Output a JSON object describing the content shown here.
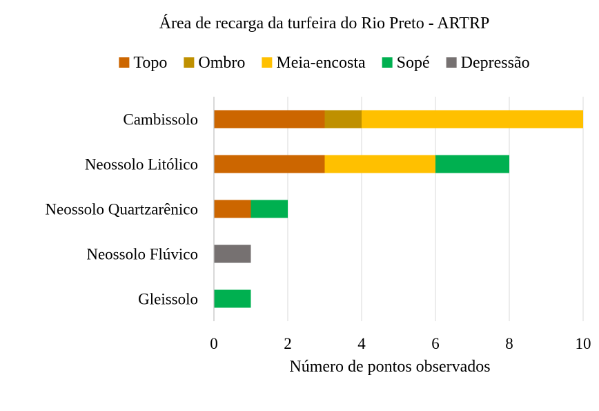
{
  "chart_data": {
    "type": "bar",
    "orientation": "horizontal",
    "stacked": true,
    "title": "Área de recarga da turfeira do Rio Preto - ARTRP",
    "xlabel": "Número de pontos observados",
    "ylabel": "",
    "xlim": [
      0,
      10
    ],
    "x_ticks": [
      "0",
      "2",
      "4",
      "6",
      "8",
      "10"
    ],
    "grid": "vertical",
    "legend_position": "top",
    "categories": [
      "Cambissolo",
      "Neossolo Litólico",
      "Neossolo Quartzarênico",
      "Neossolo Flúvico",
      "Gleissolo"
    ],
    "series": [
      {
        "name": "Topo",
        "color": "#CC6600",
        "values": [
          3,
          3,
          1,
          0,
          0
        ]
      },
      {
        "name": "Ombro",
        "color": "#BF9000",
        "values": [
          1,
          0,
          0,
          0,
          0
        ]
      },
      {
        "name": "Meia-encosta",
        "color": "#FFC000",
        "values": [
          6,
          3,
          0,
          0,
          0
        ]
      },
      {
        "name": "Sopé",
        "color": "#00B050",
        "values": [
          0,
          2,
          1,
          0,
          1
        ]
      },
      {
        "name": "Depressão",
        "color": "#767171",
        "values": [
          0,
          0,
          0,
          1,
          0
        ]
      }
    ]
  }
}
